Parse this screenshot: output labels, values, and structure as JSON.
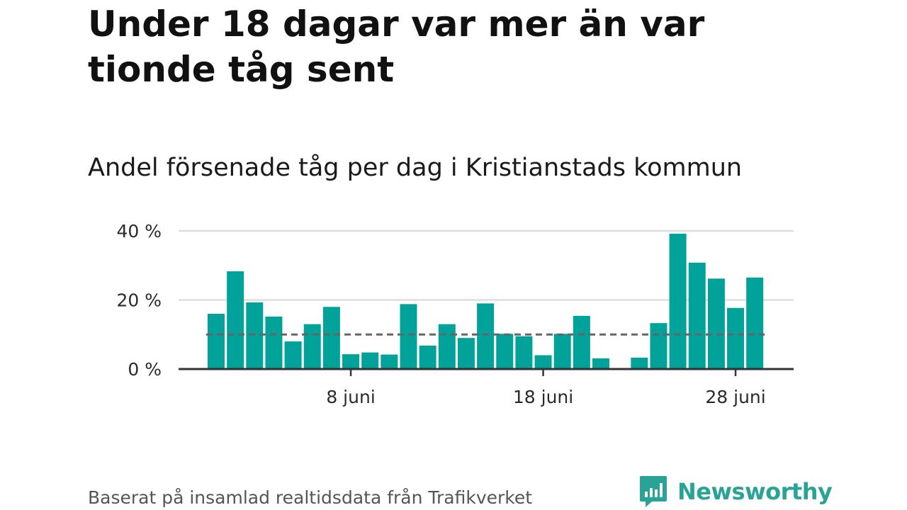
{
  "title": "Under 18 dagar var mer än var tionde tåg sent",
  "subtitle": "Andel försenade tåg per dag i Kristianstads kommun",
  "source": "Baserat på insamlad realtidsdata från Trafikverket",
  "brand": {
    "name": "Newsworthy",
    "icon": "newsworthy-logo-icon",
    "color": "#2aa397"
  },
  "colors": {
    "bar": "#00a29a",
    "reference_line": "#666666",
    "grid": "#dddddd",
    "axis": "#333333"
  },
  "chart_data": {
    "type": "bar",
    "x": [
      "2019-06-01",
      "2019-06-02",
      "2019-06-03",
      "2019-06-04",
      "2019-06-05",
      "2019-06-06",
      "2019-06-07",
      "2019-06-08",
      "2019-06-09",
      "2019-06-10",
      "2019-06-11",
      "2019-06-12",
      "2019-06-13",
      "2019-06-14",
      "2019-06-15",
      "2019-06-16",
      "2019-06-17",
      "2019-06-18",
      "2019-06-19",
      "2019-06-20",
      "2019-06-21",
      "2019-06-22",
      "2019-06-23",
      "2019-06-24",
      "2019-06-25",
      "2019-06-26",
      "2019-06-27",
      "2019-06-28",
      "2019-06-29"
    ],
    "values": [
      16,
      28.3,
      19.3,
      15.2,
      8,
      13,
      18,
      4.3,
      4.8,
      4.2,
      18.8,
      6.8,
      13,
      9,
      19,
      10.2,
      9.5,
      4,
      10.2,
      15.4,
      3.1,
      0,
      3.3,
      13.3,
      39.2,
      30.8,
      26.2,
      17.7,
      26.5
    ],
    "reference_line": {
      "value": 10,
      "style": "dashed"
    },
    "ylim": [
      0,
      40
    ],
    "yticks": [
      {
        "value": 0,
        "label": "0 %"
      },
      {
        "value": 20,
        "label": "20 %"
      },
      {
        "value": 40,
        "label": "40 %"
      }
    ],
    "xticks": [
      {
        "x": "2019-06-08",
        "label": "8 juni"
      },
      {
        "x": "2019-06-18",
        "label": "18 juni"
      },
      {
        "x": "2019-06-28",
        "label": "28 juni"
      }
    ],
    "grid": true,
    "legend": "none",
    "xlabel": "",
    "ylabel": ""
  }
}
